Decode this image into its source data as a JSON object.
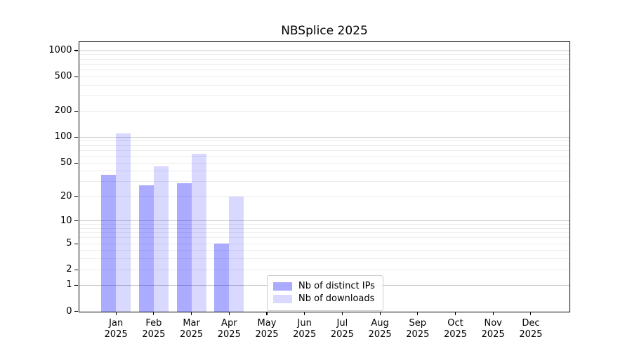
{
  "chart_data": {
    "type": "bar",
    "title": "NBSplice 2025",
    "categories": [
      "Jan 2025",
      "Feb 2025",
      "Mar 2025",
      "Apr 2025",
      "May 2025",
      "Jun 2025",
      "Jul 2025",
      "Aug 2025",
      "Sep 2025",
      "Oct 2025",
      "Nov 2025",
      "Dec 2025"
    ],
    "series": [
      {
        "name": "Nb of distinct IPs",
        "color": "#0000ff",
        "alpha": 0.33,
        "values": [
          36,
          27,
          29,
          5,
          null,
          null,
          null,
          null,
          null,
          null,
          null,
          null
        ]
      },
      {
        "name": "Nb of downloads",
        "color": "#0000ff",
        "alpha": 0.15,
        "values": [
          110,
          46,
          64,
          20,
          null,
          null,
          null,
          null,
          null,
          null,
          null,
          null
        ]
      }
    ],
    "xlabel": "",
    "ylabel": "",
    "yaxis": {
      "scale": "log1p",
      "tick_labels": [
        0,
        1,
        2,
        5,
        10,
        20,
        50,
        100,
        200,
        500,
        1000
      ],
      "range": [
        0,
        1250
      ]
    },
    "grid": {
      "on": true,
      "major_values": [
        1,
        10,
        100,
        1000
      ],
      "minor_values": [
        2,
        3,
        4,
        5,
        6,
        7,
        8,
        9,
        20,
        30,
        40,
        50,
        60,
        70,
        80,
        90,
        200,
        300,
        400,
        500,
        600,
        700,
        800,
        900
      ]
    },
    "legend": {
      "position": "lower center"
    },
    "colors": {
      "grid_major": "#c4c4c4",
      "grid_minor": "#ececec",
      "axes": "#000000",
      "background": "#ffffff"
    }
  }
}
